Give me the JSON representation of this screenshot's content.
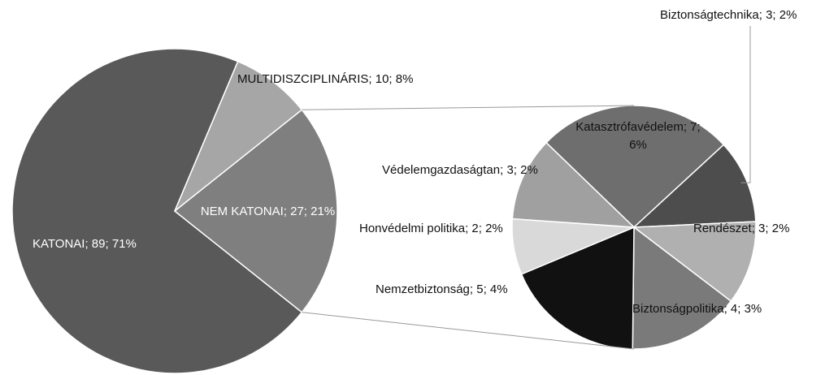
{
  "chart_data": [
    {
      "type": "pie",
      "values": [
        89,
        10,
        27
      ],
      "value_labels": [
        "KATONAI; 89; 71%",
        "MULTIDISZCIPLINÁRIS; 10; 8%",
        "NEM KATONAI; 27; 21%"
      ],
      "colors": [
        "#595959",
        "#a6a6a6",
        "#7f7f7f"
      ]
    },
    {
      "type": "pie",
      "values": [
        7,
        3,
        3,
        4,
        5,
        2,
        3
      ],
      "value_labels": [
        "Katasztrófavédelem; 7; 6%",
        "Biztonságtechnika; 3; 2%",
        "Rendészet; 3; 2%",
        "Biztonságpolitika; 4; 3%",
        "Nemzetbiztonság; 5; 4%",
        "Honvédelmi politika; 2; 2%",
        "Védelemgazdaságtan; 3; 2%"
      ],
      "colors": [
        "#6e6e6e",
        "#4d4d4d",
        "#b0b0b0",
        "#7a7a7a",
        "#111111",
        "#d9d9d9",
        "#a0a0a0"
      ]
    }
  ]
}
